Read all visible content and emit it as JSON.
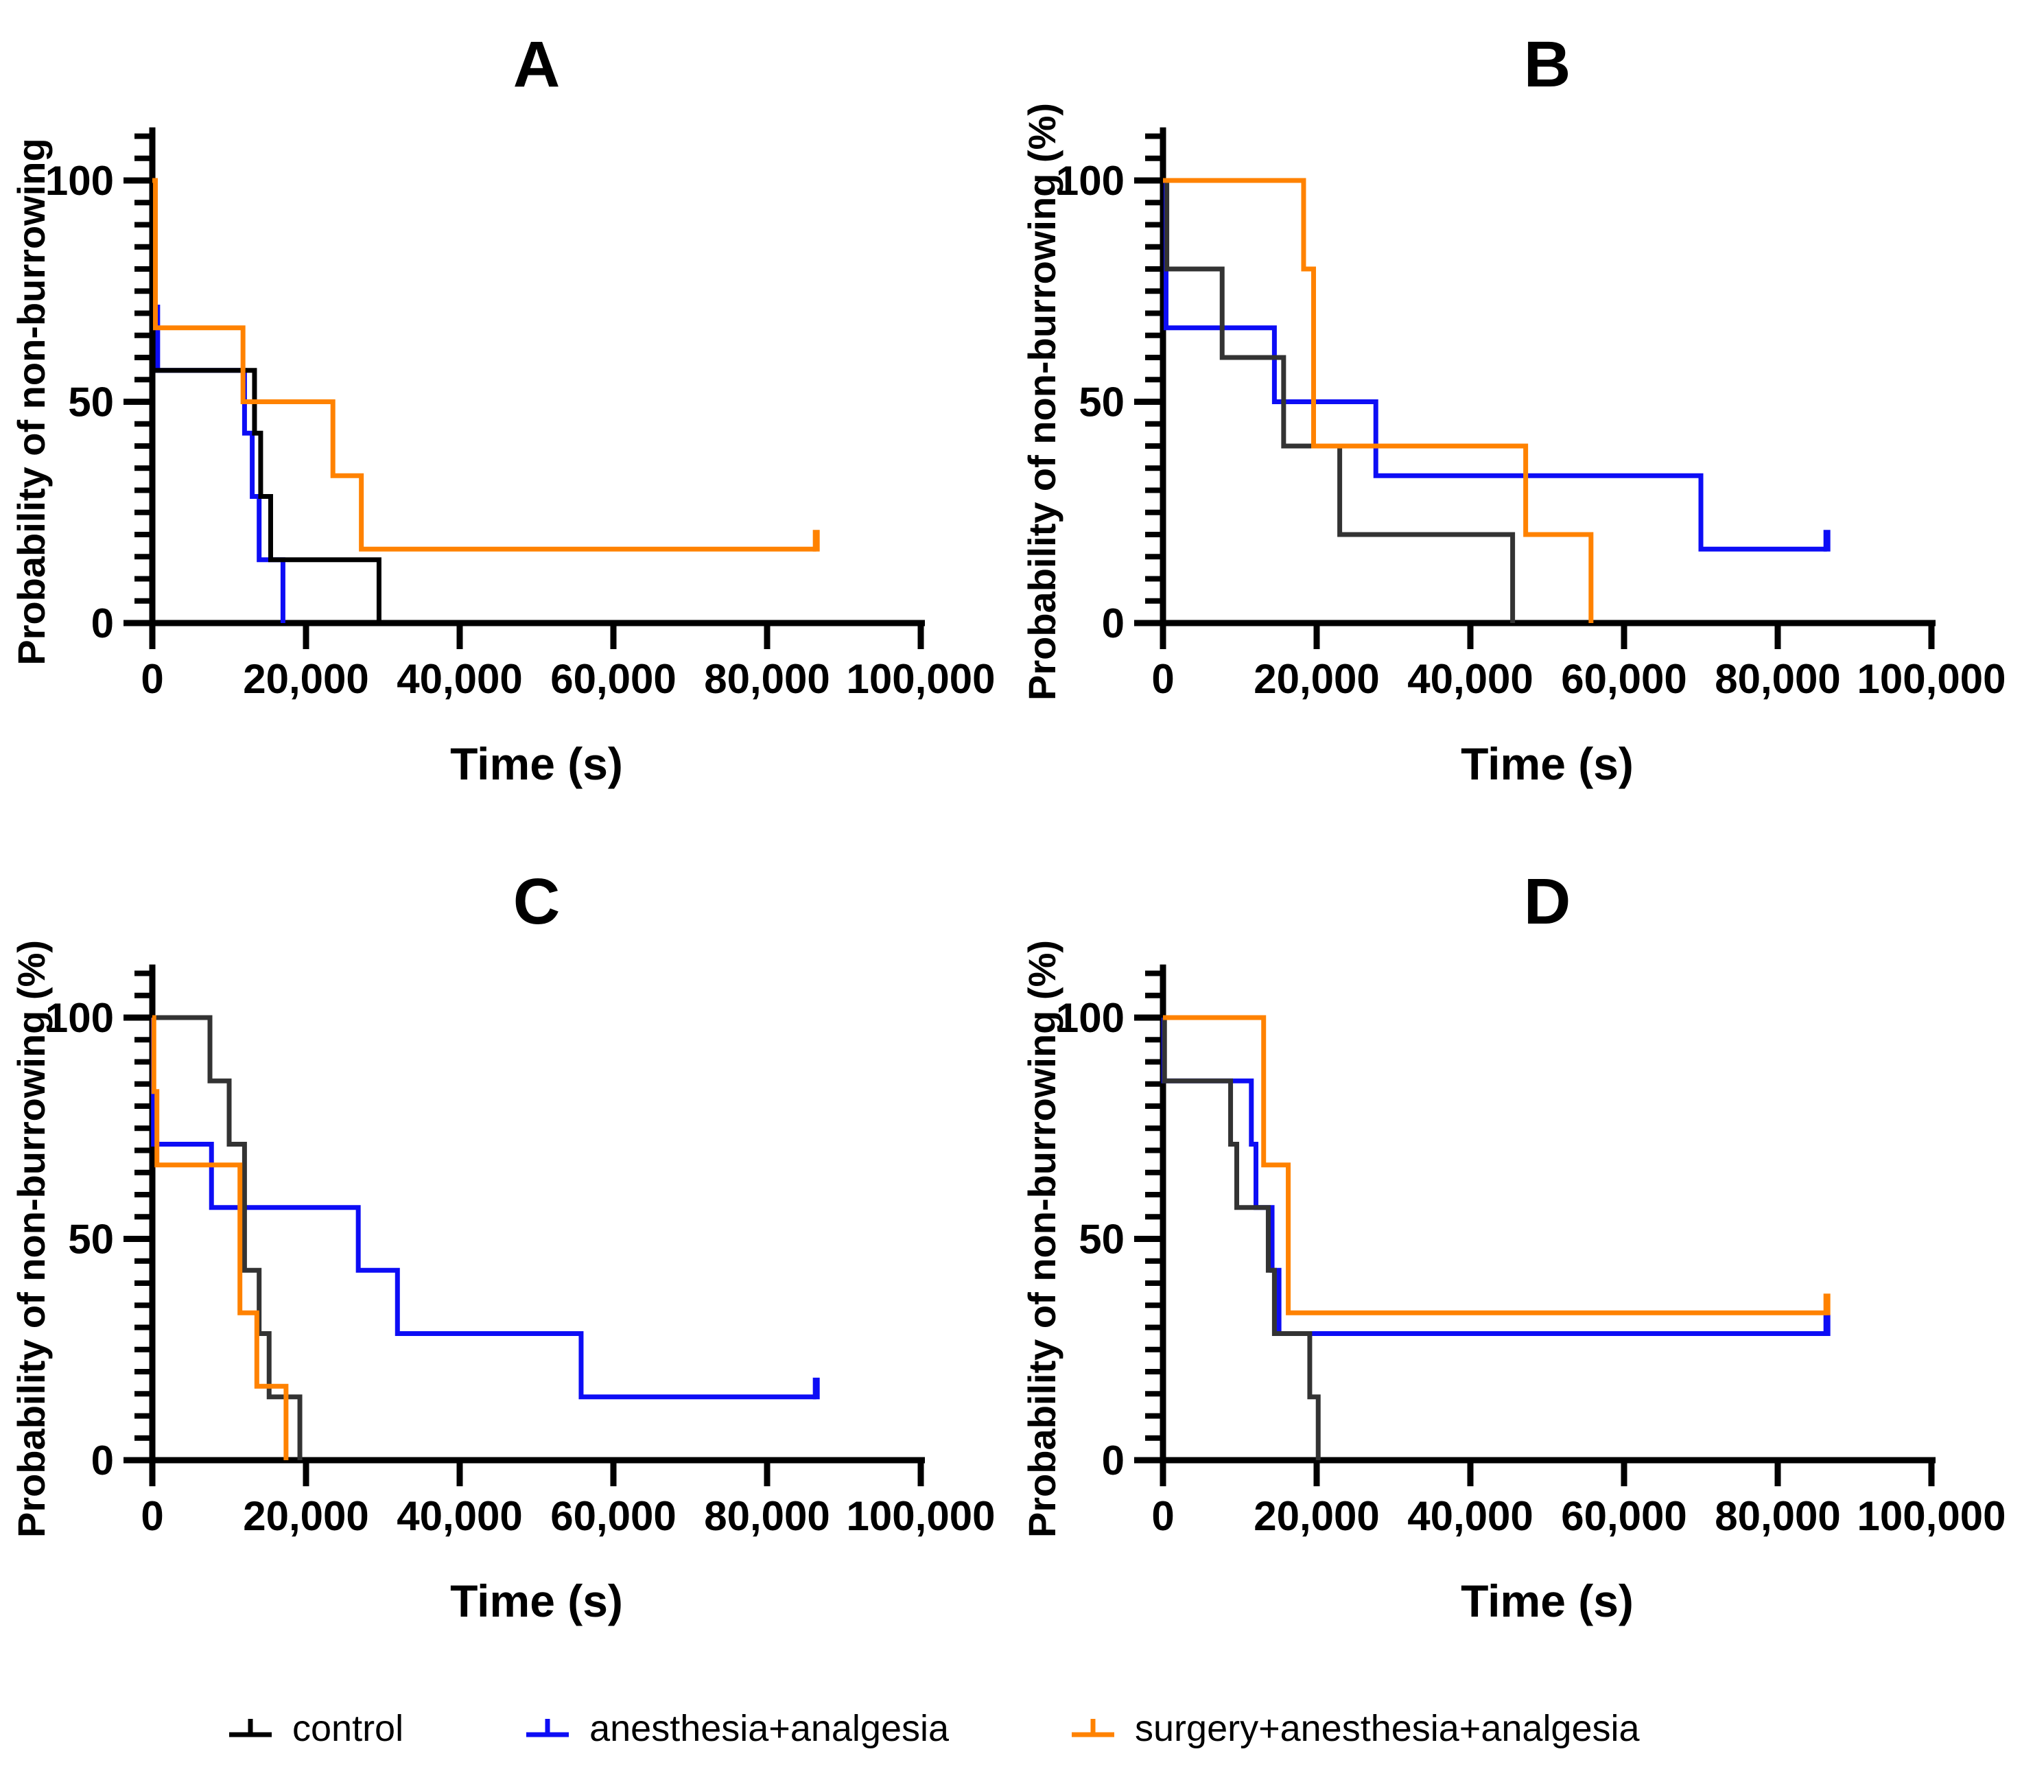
{
  "figure": {
    "background": "#ffffff",
    "panel_titles": [
      "A",
      "B",
      "C",
      "D"
    ]
  },
  "legend": {
    "items": [
      {
        "label": "control",
        "color": "#000000"
      },
      {
        "label": "anesthesia+analgesia",
        "color": "#0d0df5"
      },
      {
        "label": "surgery+anesthesia+analgesia",
        "color": "#ff8200"
      }
    ]
  },
  "chart_data": [
    {
      "id": "A",
      "type": "line",
      "subtype": "kaplan-meier-step",
      "title": "A",
      "xlabel": "Time (s)",
      "ylabel": "Probability of non-burrowing",
      "xlim": [
        0,
        100000
      ],
      "ylim": [
        0,
        100
      ],
      "grid": false,
      "xticks": [
        [
          0,
          "0"
        ],
        [
          20000,
          "20,000"
        ],
        [
          40000,
          "40,000"
        ],
        [
          60000,
          "60,000"
        ],
        [
          80000,
          "80,000"
        ],
        [
          100000,
          "100,000"
        ]
      ],
      "yticks": [
        [
          0,
          "0"
        ],
        [
          50,
          "50"
        ],
        [
          100,
          "100"
        ]
      ],
      "y_minor_step": 5,
      "y_axis_top": 110,
      "series": [
        {
          "name": "anesthesia+analgesia",
          "color": "#0d0df5",
          "censored_end": false,
          "points": [
            [
              0,
              100
            ],
            [
              250,
              71.4
            ],
            [
              700,
              57.1
            ],
            [
              12000,
              42.9
            ],
            [
              13000,
              28.6
            ],
            [
              13900,
              14.3
            ],
            [
              17000,
              0
            ]
          ]
        },
        {
          "name": "control",
          "color": "#000000",
          "censored_end": false,
          "points": [
            [
              0,
              100
            ],
            [
              100,
              57.1
            ],
            [
              13300,
              42.9
            ],
            [
              14100,
              28.6
            ],
            [
              15400,
              14.3
            ],
            [
              29500,
              0
            ]
          ]
        },
        {
          "name": "surgery+anesthesia+analgesia",
          "color": "#ff8200",
          "censored_end": true,
          "points": [
            [
              0,
              100
            ],
            [
              400,
              66.7
            ],
            [
              11800,
              50
            ],
            [
              23500,
              33.3
            ],
            [
              27200,
              16.7
            ],
            [
              86400,
              16.7
            ]
          ]
        }
      ]
    },
    {
      "id": "B",
      "type": "line",
      "subtype": "kaplan-meier-step",
      "title": "B",
      "xlabel": "Time (s)",
      "ylabel": "Probability of non-burrowing (%)",
      "xlim": [
        0,
        100000
      ],
      "ylim": [
        0,
        100
      ],
      "grid": false,
      "xticks": [
        [
          0,
          "0"
        ],
        [
          20000,
          "20,000"
        ],
        [
          40000,
          "40,000"
        ],
        [
          60000,
          "60,000"
        ],
        [
          80000,
          "80,000"
        ],
        [
          100000,
          "100,000"
        ]
      ],
      "yticks": [
        [
          0,
          "0"
        ],
        [
          50,
          "50"
        ],
        [
          100,
          "100"
        ]
      ],
      "y_minor_step": 5,
      "y_axis_top": 110,
      "series": [
        {
          "name": "anesthesia+analgesia",
          "color": "#0d0df5",
          "censored_end": true,
          "points": [
            [
              0,
              100
            ],
            [
              400,
              66.7
            ],
            [
              14500,
              50
            ],
            [
              27700,
              33.3
            ],
            [
              70000,
              16.7
            ],
            [
              86400,
              16.7
            ]
          ]
        },
        {
          "name": "control",
          "color": "#333333",
          "censored_end": false,
          "points": [
            [
              0,
              100
            ],
            [
              500,
              80
            ],
            [
              7700,
              60
            ],
            [
              15700,
              40
            ],
            [
              23000,
              20
            ],
            [
              45500,
              0
            ]
          ]
        },
        {
          "name": "surgery+anesthesia+analgesia",
          "color": "#ff8200",
          "censored_end": false,
          "points": [
            [
              0,
              100
            ],
            [
              18300,
              80
            ],
            [
              19600,
              40
            ],
            [
              47200,
              20
            ],
            [
              55700,
              0
            ]
          ]
        }
      ]
    },
    {
      "id": "C",
      "type": "line",
      "subtype": "kaplan-meier-step",
      "title": "C",
      "xlabel": "Time (s)",
      "ylabel": "Probability of non-burrowing (%)",
      "xlim": [
        0,
        100000
      ],
      "ylim": [
        0,
        100
      ],
      "grid": false,
      "xticks": [
        [
          0,
          "0"
        ],
        [
          20000,
          "20,000"
        ],
        [
          40000,
          "40,000"
        ],
        [
          60000,
          "60,000"
        ],
        [
          80000,
          "80,000"
        ],
        [
          100000,
          "100,000"
        ]
      ],
      "yticks": [
        [
          0,
          "0"
        ],
        [
          50,
          "50"
        ],
        [
          100,
          "100"
        ]
      ],
      "y_minor_step": 5,
      "y_axis_top": 110,
      "series": [
        {
          "name": "anesthesia+analgesia",
          "color": "#0d0df5",
          "censored_end": true,
          "points": [
            [
              0,
              100
            ],
            [
              150,
              71.4
            ],
            [
              7700,
              57.1
            ],
            [
              26800,
              42.9
            ],
            [
              31900,
              28.6
            ],
            [
              55800,
              14.3
            ],
            [
              86400,
              14.3
            ]
          ]
        },
        {
          "name": "control",
          "color": "#333333",
          "censored_end": false,
          "points": [
            [
              0,
              100
            ],
            [
              7500,
              85.7
            ],
            [
              10000,
              71.4
            ],
            [
              12000,
              42.9
            ],
            [
              13900,
              28.6
            ],
            [
              15200,
              14.3
            ],
            [
              19200,
              0
            ]
          ]
        },
        {
          "name": "surgery+anesthesia+analgesia",
          "color": "#ff8200",
          "censored_end": false,
          "points": [
            [
              0,
              100
            ],
            [
              200,
              83.3
            ],
            [
              600,
              66.7
            ],
            [
              11400,
              33.3
            ],
            [
              13600,
              16.7
            ],
            [
              17400,
              0
            ]
          ]
        }
      ]
    },
    {
      "id": "D",
      "type": "line",
      "subtype": "kaplan-meier-step",
      "title": "D",
      "xlabel": "Time (s)",
      "ylabel": "Probability of non-burrowing (%)",
      "xlim": [
        0,
        100000
      ],
      "ylim": [
        0,
        100
      ],
      "grid": false,
      "xticks": [
        [
          0,
          "0"
        ],
        [
          20000,
          "20,000"
        ],
        [
          40000,
          "40,000"
        ],
        [
          60000,
          "60,000"
        ],
        [
          80000,
          "80,000"
        ],
        [
          100000,
          "100,000"
        ]
      ],
      "yticks": [
        [
          0,
          "0"
        ],
        [
          50,
          "50"
        ],
        [
          100,
          "100"
        ]
      ],
      "y_minor_step": 5,
      "y_axis_top": 110,
      "series": [
        {
          "name": "anesthesia+analgesia",
          "color": "#0d0df5",
          "censored_end": true,
          "points": [
            [
              0,
              100
            ],
            [
              100,
              85.7
            ],
            [
              11500,
              71.4
            ],
            [
              12100,
              57.1
            ],
            [
              14200,
              42.9
            ],
            [
              15100,
              28.6
            ],
            [
              86400,
              28.6
            ]
          ]
        },
        {
          "name": "control",
          "color": "#333333",
          "censored_end": false,
          "points": [
            [
              0,
              100
            ],
            [
              200,
              85.7
            ],
            [
              8800,
              71.4
            ],
            [
              9600,
              57.1
            ],
            [
              13700,
              42.9
            ],
            [
              14500,
              28.6
            ],
            [
              19100,
              14.3
            ],
            [
              20200,
              0
            ]
          ]
        },
        {
          "name": "surgery+anesthesia+analgesia",
          "color": "#ff8200",
          "censored_end": true,
          "points": [
            [
              0,
              100
            ],
            [
              13100,
              66.7
            ],
            [
              16300,
              33.3
            ],
            [
              86400,
              33.3
            ]
          ]
        }
      ]
    }
  ]
}
